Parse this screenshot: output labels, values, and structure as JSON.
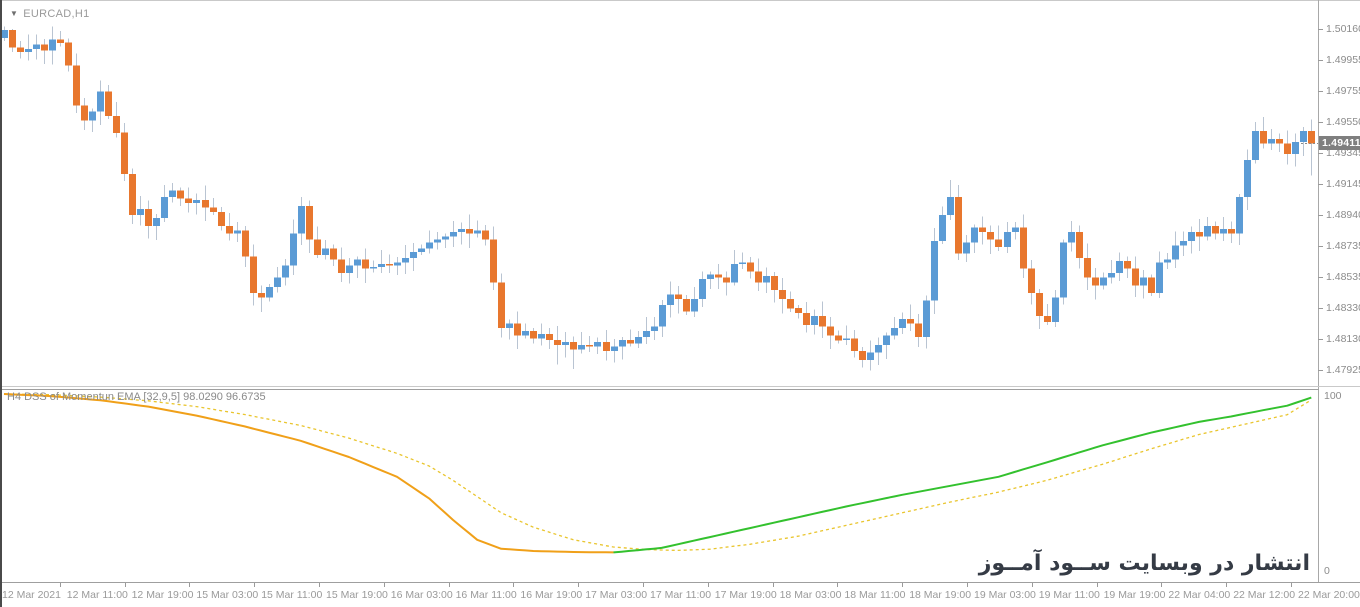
{
  "window": {
    "dropdown_icon": "▼"
  },
  "watermark": {
    "text": "انتشار در وبسایت ســود آمــوز"
  },
  "chart_data": [
    {
      "type": "candlestick",
      "title": "EURCAD,H1",
      "x_axis": {
        "labels": [
          "12 Mar 2021",
          "12 Mar 11:00",
          "12 Mar 19:00",
          "15 Mar 03:00",
          "15 Mar 11:00",
          "15 Mar 19:00",
          "16 Mar 03:00",
          "16 Mar 11:00",
          "16 Mar 19:00",
          "17 Mar 03:00",
          "17 Mar 11:00",
          "17 Mar 19:00",
          "18 Mar 03:00",
          "18 Mar 11:00",
          "18 Mar 19:00",
          "19 Mar 03:00",
          "19 Mar 11:00",
          "19 Mar 19:00",
          "22 Mar 04:00",
          "22 Mar 12:00",
          "22 Mar 20:00"
        ]
      },
      "y_axis": {
        "labels": [
          "1.50160",
          "1.49955",
          "1.49755",
          "1.49550",
          "1.49345",
          "1.49145",
          "1.48940",
          "1.48735",
          "1.48535",
          "1.48330",
          "1.48130",
          "1.47925"
        ],
        "current_price": "1.49411",
        "range_top": 1.5016,
        "range_bottom": 1.47925
      },
      "series": {
        "timeframe": "H1",
        "first_open": 1.501,
        "closes": [
          1.50155,
          1.5004,
          1.5001,
          1.5003,
          1.5006,
          1.5002,
          1.5009,
          1.5007,
          1.4992,
          1.4966,
          1.4956,
          1.4962,
          1.4975,
          1.4959,
          1.4948,
          1.4921,
          1.4894,
          1.4898,
          1.4887,
          1.4892,
          1.4906,
          1.491,
          1.4905,
          1.4902,
          1.4904,
          1.4899,
          1.4896,
          1.4887,
          1.4882,
          1.4884,
          1.4867,
          1.4843,
          1.484,
          1.4847,
          1.4853,
          1.4861,
          1.4882,
          1.49,
          1.4878,
          1.4868,
          1.4872,
          1.4865,
          1.4856,
          1.4861,
          1.4865,
          1.4859,
          1.486,
          1.4862,
          1.4861,
          1.4863,
          1.4866,
          1.487,
          1.4872,
          1.4876,
          1.4878,
          1.488,
          1.4883,
          1.4885,
          1.4882,
          1.4884,
          1.4878,
          1.485,
          1.482,
          1.4823,
          1.4815,
          1.4818,
          1.4813,
          1.4816,
          1.4812,
          1.4809,
          1.4811,
          1.4806,
          1.4809,
          1.4808,
          1.4811,
          1.4805,
          1.4808,
          1.4812,
          1.481,
          1.4814,
          1.4818,
          1.4821,
          1.4835,
          1.4842,
          1.4839,
          1.4831,
          1.4839,
          1.4852,
          1.4855,
          1.4853,
          1.485,
          1.4862,
          1.4863,
          1.4857,
          1.485,
          1.4854,
          1.4845,
          1.4839,
          1.4833,
          1.483,
          1.4822,
          1.4828,
          1.4821,
          1.4815,
          1.4812,
          1.4813,
          1.4805,
          1.4799,
          1.4804,
          1.4809,
          1.4815,
          1.482,
          1.4826,
          1.4823,
          1.4814,
          1.4838,
          1.4877,
          1.4894,
          1.4906,
          1.4869,
          1.4876,
          1.4886,
          1.4883,
          1.4878,
          1.4873,
          1.4883,
          1.4886,
          1.4859,
          1.4843,
          1.4828,
          1.4824,
          1.484,
          1.4876,
          1.4883,
          1.4866,
          1.4853,
          1.4848,
          1.4853,
          1.4856,
          1.4864,
          1.4859,
          1.4848,
          1.4853,
          1.4843,
          1.4863,
          1.4865,
          1.4874,
          1.4877,
          1.4883,
          1.488,
          1.4887,
          1.4882,
          1.4885,
          1.4882,
          1.4906,
          1.493,
          1.4949,
          1.4941,
          1.4944,
          1.4941,
          1.4934,
          1.4942,
          1.4949,
          1.49411
        ],
        "wick_overrides": {
          "1": {
            "high": 1.5016
          },
          "5": {
            "low": 1.4993
          },
          "37": {
            "high": 1.4906
          },
          "69": {
            "low": 1.4796
          },
          "71": {
            "low": 1.4793
          },
          "107": {
            "low": 1.4794
          },
          "118": {
            "high": 1.4917
          },
          "156": {
            "high": 1.4955
          },
          "163": {
            "low": 1.492
          }
        }
      },
      "colors": {
        "bull": "#5B9BD5",
        "bear": "#E8772E",
        "wick": "#B9C4D2"
      }
    },
    {
      "type": "line",
      "label": "H4 DSS of Momentun EMA [32,9,5] 98.0290 96.6735",
      "current_values": [
        "98.0290",
        "96.6735"
      ],
      "ylim": [
        0,
        100
      ],
      "y_axis_labels": [
        "100",
        "0"
      ],
      "series": [
        {
          "name": "dss-main",
          "style": "solid",
          "colors": {
            "falling": "#F0A019",
            "rising": "#33C12E"
          },
          "points": [
            [
              0,
              100
            ],
            [
              6,
              98.8
            ],
            [
              12,
              96.5
            ],
            [
              18,
              93
            ],
            [
              24,
              88
            ],
            [
              30,
              82
            ],
            [
              37,
              74
            ],
            [
              43,
              65
            ],
            [
              49,
              54
            ],
            [
              53,
              42
            ],
            [
              56,
              30
            ],
            [
              59,
              19
            ],
            [
              62,
              14
            ],
            [
              66,
              12.8
            ],
            [
              71,
              12.2
            ],
            [
              76,
              12.0
            ],
            [
              82,
              14.5
            ],
            [
              87,
              19.5
            ],
            [
              93,
              25.5
            ],
            [
              99,
              31.5
            ],
            [
              105,
              37.5
            ],
            [
              112,
              44
            ],
            [
              118,
              49
            ],
            [
              124,
              54
            ],
            [
              130,
              62
            ],
            [
              137,
              71.5
            ],
            [
              143,
              78.5
            ],
            [
              149,
              84.5
            ],
            [
              153,
              87.5
            ],
            [
              157,
              91
            ],
            [
              160,
              93.5
            ],
            [
              163,
              98.0
            ]
          ]
        },
        {
          "name": "dss-signal",
          "style": "dashed",
          "color": "#E9C52E",
          "points": [
            [
              0,
              100
            ],
            [
              6,
              99.6
            ],
            [
              12,
              98.3
            ],
            [
              18,
              96.2
            ],
            [
              24,
              93
            ],
            [
              30,
              88.6
            ],
            [
              37,
              82.5
            ],
            [
              43,
              75.5
            ],
            [
              49,
              67
            ],
            [
              53,
              60
            ],
            [
              56,
              52
            ],
            [
              59,
              43
            ],
            [
              62,
              34
            ],
            [
              66,
              26
            ],
            [
              71,
              19
            ],
            [
              76,
              15
            ],
            [
              80,
              13.6
            ],
            [
              84,
              13.1
            ],
            [
              88,
              13.8
            ],
            [
              93,
              16.5
            ],
            [
              99,
              21
            ],
            [
              105,
              27
            ],
            [
              112,
              34
            ],
            [
              118,
              40
            ],
            [
              124,
              45.5
            ],
            [
              130,
              52
            ],
            [
              137,
              61
            ],
            [
              143,
              69.5
            ],
            [
              149,
              77.5
            ],
            [
              153,
              81.5
            ],
            [
              157,
              85.5
            ],
            [
              160,
              88.5
            ],
            [
              163,
              96.7
            ]
          ]
        }
      ]
    }
  ]
}
